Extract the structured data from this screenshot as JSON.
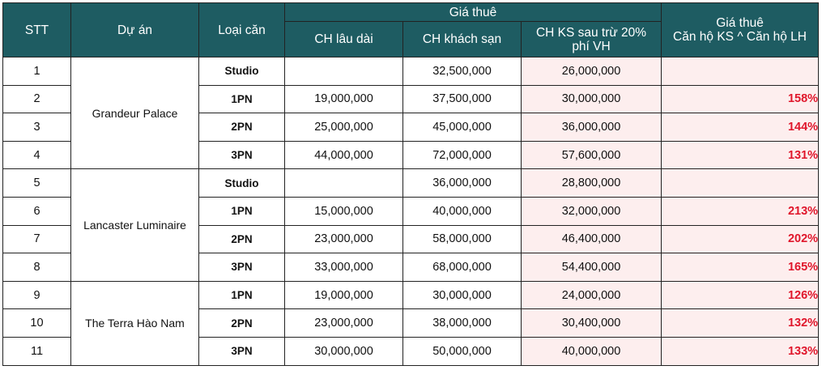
{
  "headers": {
    "stt": "STT",
    "project": "Dự án",
    "unit_type": "Loại căn",
    "rent_group": "Giá thuê",
    "long_term": "CH lâu dài",
    "hotel": "CH khách sạn",
    "hotel_after_fee_line1": "CH KS sau trừ 20%",
    "hotel_after_fee_line2": "phí VH",
    "ratio_line1": "Giá thuê",
    "ratio_line2": "Căn hộ KS ^ Căn hộ LH"
  },
  "projects": [
    {
      "name": "Grandeur Palace",
      "rows": [
        {
          "stt": "1",
          "type": "Studio",
          "long_term": "",
          "hotel": "32,500,000",
          "hotel_net": "26,000,000",
          "ratio": ""
        },
        {
          "stt": "2",
          "type": "1PN",
          "long_term": "19,000,000",
          "hotel": "37,500,000",
          "hotel_net": "30,000,000",
          "ratio": "158%"
        },
        {
          "stt": "3",
          "type": "2PN",
          "long_term": "25,000,000",
          "hotel": "45,000,000",
          "hotel_net": "36,000,000",
          "ratio": "144%"
        },
        {
          "stt": "4",
          "type": "3PN",
          "long_term": "44,000,000",
          "hotel": "72,000,000",
          "hotel_net": "57,600,000",
          "ratio": "131%"
        }
      ]
    },
    {
      "name": "Lancaster Luminaire",
      "rows": [
        {
          "stt": "5",
          "type": "Studio",
          "long_term": "",
          "hotel": "36,000,000",
          "hotel_net": "28,800,000",
          "ratio": ""
        },
        {
          "stt": "6",
          "type": "1PN",
          "long_term": "15,000,000",
          "hotel": "40,000,000",
          "hotel_net": "32,000,000",
          "ratio": "213%"
        },
        {
          "stt": "7",
          "type": "2PN",
          "long_term": "23,000,000",
          "hotel": "58,000,000",
          "hotel_net": "46,400,000",
          "ratio": "202%"
        },
        {
          "stt": "8",
          "type": "3PN",
          "long_term": "33,000,000",
          "hotel": "68,000,000",
          "hotel_net": "54,400,000",
          "ratio": "165%"
        }
      ]
    },
    {
      "name": "The Terra Hào Nam",
      "rows": [
        {
          "stt": "9",
          "type": "1PN",
          "long_term": "19,000,000",
          "hotel": "30,000,000",
          "hotel_net": "24,000,000",
          "ratio": "126%"
        },
        {
          "stt": "10",
          "type": "2PN",
          "long_term": "23,000,000",
          "hotel": "38,000,000",
          "hotel_net": "30,400,000",
          "ratio": "132%"
        },
        {
          "stt": "11",
          "type": "3PN",
          "long_term": "30,000,000",
          "hotel": "50,000,000",
          "hotel_net": "40,000,000",
          "ratio": "133%"
        }
      ]
    }
  ],
  "colors": {
    "header_bg": "#1e5c62",
    "header_text": "#ffffff",
    "highlight_bg": "#fdeeee",
    "ratio_text": "#e0162b"
  }
}
